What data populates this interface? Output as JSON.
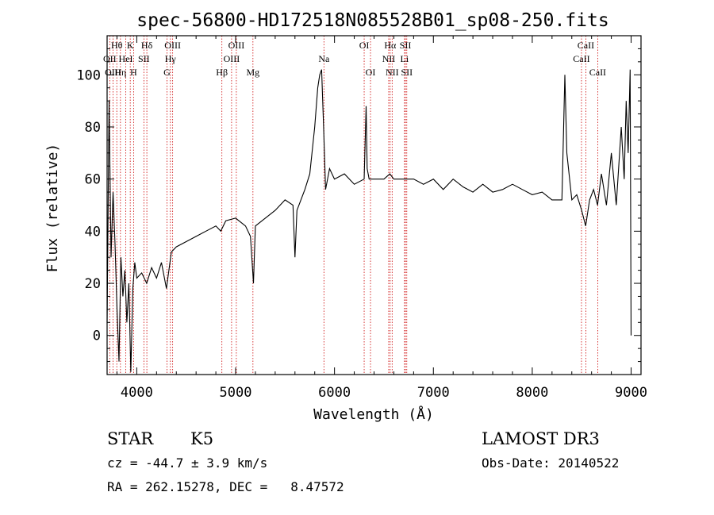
{
  "chart_data": {
    "type": "line",
    "title": "spec-56800-HD172518N085528B01_sp08-250.fits",
    "xlabel": "Wavelength (Å)",
    "ylabel": "Flux (relative)",
    "xlim": [
      3700,
      9100
    ],
    "ylim": [
      -15,
      115
    ],
    "xticks": [
      4000,
      5000,
      6000,
      7000,
      8000,
      9000
    ],
    "yticks": [
      0,
      20,
      40,
      60,
      80,
      100
    ],
    "spectrum": {
      "name": "flux",
      "x": [
        3700,
        3720,
        3740,
        3760,
        3780,
        3800,
        3820,
        3840,
        3860,
        3880,
        3900,
        3920,
        3940,
        3960,
        3980,
        4000,
        4050,
        4100,
        4150,
        4200,
        4250,
        4300,
        4350,
        4400,
        4500,
        4600,
        4700,
        4800,
        4850,
        4900,
        5000,
        5100,
        5150,
        5180,
        5200,
        5300,
        5400,
        5500,
        5580,
        5600,
        5620,
        5700,
        5750,
        5800,
        5830,
        5850,
        5870,
        5890,
        5910,
        5950,
        6000,
        6100,
        6200,
        6300,
        6320,
        6330,
        6350,
        6400,
        6500,
        6560,
        6600,
        6700,
        6800,
        6900,
        7000,
        7100,
        7200,
        7300,
        7400,
        7500,
        7600,
        7700,
        7800,
        7900,
        8000,
        8100,
        8200,
        8300,
        8330,
        8350,
        8400,
        8450,
        8500,
        8540,
        8580,
        8620,
        8660,
        8700,
        8750,
        8800,
        8850,
        8900,
        8930,
        8950,
        8970,
        8990,
        9000
      ],
      "y": [
        5,
        90,
        30,
        55,
        35,
        10,
        -10,
        30,
        15,
        25,
        5,
        20,
        -14,
        18,
        28,
        22,
        24,
        20,
        26,
        22,
        28,
        18,
        32,
        34,
        36,
        38,
        40,
        42,
        40,
        44,
        45,
        42,
        38,
        20,
        42,
        45,
        48,
        52,
        50,
        30,
        48,
        56,
        62,
        80,
        95,
        100,
        102,
        80,
        56,
        64,
        60,
        62,
        58,
        60,
        88,
        64,
        60,
        60,
        60,
        62,
        60,
        60,
        60,
        58,
        60,
        56,
        60,
        57,
        55,
        58,
        55,
        56,
        58,
        56,
        54,
        55,
        52,
        52,
        100,
        70,
        52,
        54,
        48,
        42,
        52,
        56,
        50,
        62,
        50,
        70,
        50,
        80,
        60,
        90,
        70,
        102,
        0
      ]
    },
    "spectral_lines": [
      {
        "name": "Hθ",
        "wave": 3798,
        "row": 1
      },
      {
        "name": "OII",
        "wave": 3727,
        "row": 2
      },
      {
        "name": "Hη",
        "wave": 3835,
        "row": 3
      },
      {
        "name": "OIII",
        "wave": 3760,
        "row": 3
      },
      {
        "name": "K",
        "wave": 3934,
        "row": 1
      },
      {
        "name": "HeI",
        "wave": 3889,
        "row": 2
      },
      {
        "name": "H",
        "wave": 3968,
        "row": 3
      },
      {
        "name": "SII",
        "wave": 4072,
        "row": 2
      },
      {
        "name": "Hδ",
        "wave": 4102,
        "row": 1
      },
      {
        "name": "OIII",
        "wave": 4363,
        "row": 1
      },
      {
        "name": "Hγ",
        "wave": 4340,
        "row": 2
      },
      {
        "name": "G",
        "wave": 4305,
        "row": 3
      },
      {
        "name": "OIII",
        "wave": 5007,
        "row": 1
      },
      {
        "name": "OIII",
        "wave": 4959,
        "row": 2
      },
      {
        "name": "Hβ",
        "wave": 4861,
        "row": 3
      },
      {
        "name": "Mg",
        "wave": 5175,
        "row": 3
      },
      {
        "name": "Na",
        "wave": 5893,
        "row": 2
      },
      {
        "name": "OI",
        "wave": 6300,
        "row": 1
      },
      {
        "name": "OI",
        "wave": 6364,
        "row": 3
      },
      {
        "name": "Hα",
        "wave": 6563,
        "row": 1
      },
      {
        "name": "NII",
        "wave": 6548,
        "row": 2
      },
      {
        "name": "NII",
        "wave": 6583,
        "row": 3
      },
      {
        "name": "SII",
        "wave": 6717,
        "row": 1
      },
      {
        "name": "Li",
        "wave": 6708,
        "row": 2
      },
      {
        "name": "SII",
        "wave": 6731,
        "row": 3
      },
      {
        "name": "CaII",
        "wave": 8542,
        "row": 1
      },
      {
        "name": "CaII",
        "wave": 8498,
        "row": 2
      },
      {
        "name": "CaII",
        "wave": 8662,
        "row": 3
      }
    ],
    "line_color": "#000000",
    "marker_color": "#cc0000"
  },
  "footer": {
    "object_type": "STAR",
    "subclass": "K5",
    "survey": "LAMOST DR3",
    "velocity": "cz = -44.7 ± 3.9 km/s",
    "obs_date": "Obs-Date: 20140522",
    "coords": "RA = 262.15278, DEC =   8.47572"
  }
}
